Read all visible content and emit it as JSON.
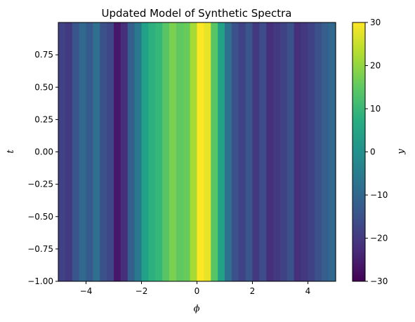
{
  "chart_data": {
    "type": "heatmap",
    "title": "Updated Model of Synthetic Spectra",
    "xlabel": "ϕ",
    "ylabel": "t",
    "colorbar_label": "y",
    "colormap": "viridis",
    "xlim": [
      -5,
      5
    ],
    "ylim": [
      -1,
      1
    ],
    "clim": [
      -30,
      30
    ],
    "x_ticks": [
      -4,
      -2,
      0,
      2,
      4
    ],
    "x_tick_labels": [
      "−4",
      "−2",
      "0",
      "2",
      "4"
    ],
    "y_ticks": [
      -1.0,
      -0.75,
      -0.5,
      -0.25,
      0.0,
      0.25,
      0.5,
      0.75
    ],
    "y_tick_labels": [
      "−1.00",
      "−0.75",
      "−0.50",
      "−0.25",
      "0.00",
      "0.25",
      "0.50",
      "0.75"
    ],
    "colorbar_ticks": [
      -30,
      -20,
      -10,
      0,
      10,
      20,
      30
    ],
    "colorbar_tick_labels": [
      "−30",
      "−20",
      "−10",
      "0",
      "10",
      "20",
      "30"
    ],
    "columns": {
      "phi": [
        -5.0,
        -4.75,
        -4.5,
        -4.25,
        -4.0,
        -3.75,
        -3.5,
        -3.25,
        -3.0,
        -2.75,
        -2.5,
        -2.25,
        -2.0,
        -1.75,
        -1.5,
        -1.25,
        -1.0,
        -0.75,
        -0.5,
        -0.25,
        0.0,
        0.25,
        0.5,
        0.75,
        1.0,
        1.25,
        1.5,
        1.75,
        2.0,
        2.25,
        2.5,
        2.75,
        3.0,
        3.25,
        3.5,
        3.75,
        4.0,
        4.25,
        4.5,
        4.75
      ],
      "y": [
        -18,
        -20,
        -14,
        -10,
        -13,
        -8,
        -15,
        -17,
        -26,
        -22,
        -12,
        -6,
        4,
        8,
        10,
        14,
        18,
        15,
        16,
        22,
        30,
        28,
        14,
        4,
        -8,
        -15,
        -18,
        -14,
        -20,
        -16,
        -22,
        -20,
        -18,
        -15,
        -22,
        -20,
        -18,
        -15,
        -12,
        -10
      ]
    }
  }
}
